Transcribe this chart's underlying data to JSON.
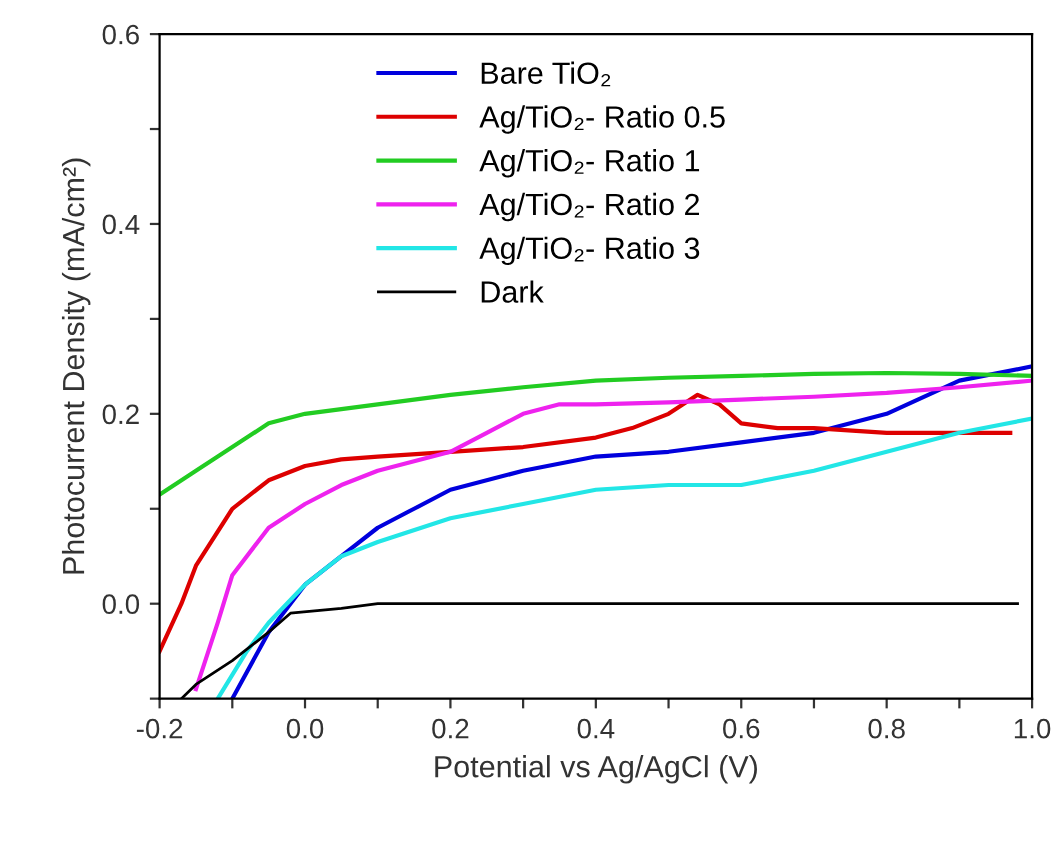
{
  "chart_data": {
    "type": "line",
    "xlabel": "Potential vs Ag/AgCl (V)",
    "ylabel": "Photocurrent Density (mA/cm²)",
    "xlim": [
      -0.2,
      1.0
    ],
    "ylim": [
      -0.1,
      0.6
    ],
    "xticks": [
      {
        "value": -0.2,
        "label": "-0.2"
      },
      {
        "value": -0.1,
        "label": null
      },
      {
        "value": 0.0,
        "label": "0.0"
      },
      {
        "value": 0.1,
        "label": null
      },
      {
        "value": 0.2,
        "label": "0.2"
      },
      {
        "value": 0.3,
        "label": null
      },
      {
        "value": 0.4,
        "label": "0.4"
      },
      {
        "value": 0.5,
        "label": null
      },
      {
        "value": 0.6,
        "label": "0.6"
      },
      {
        "value": 0.7,
        "label": null
      },
      {
        "value": 0.8,
        "label": "0.8"
      },
      {
        "value": 0.9,
        "label": null
      },
      {
        "value": 1.0,
        "label": "1.0"
      }
    ],
    "yticks": [
      {
        "value": -0.1,
        "label": null
      },
      {
        "value": 0.0,
        "label": "0.0"
      },
      {
        "value": 0.1,
        "label": null
      },
      {
        "value": 0.2,
        "label": "0.2"
      },
      {
        "value": 0.3,
        "label": null
      },
      {
        "value": 0.4,
        "label": "0.4"
      },
      {
        "value": 0.5,
        "label": null
      },
      {
        "value": 0.6,
        "label": "0.6"
      }
    ],
    "grid": false,
    "legend": "top",
    "marker": "none",
    "line_style": "solid",
    "series": [
      {
        "name": "Bare TiO₂",
        "color": "#0000dd",
        "x": [
          -0.1,
          -0.05,
          0.0,
          0.05,
          0.1,
          0.15,
          0.2,
          0.3,
          0.4,
          0.5,
          0.6,
          0.7,
          0.8,
          0.9,
          1.0
        ],
        "values": [
          -0.1,
          -0.03,
          0.02,
          0.05,
          0.08,
          0.1,
          0.12,
          0.14,
          0.155,
          0.16,
          0.17,
          0.18,
          0.2,
          0.235,
          0.25
        ]
      },
      {
        "name": "Ag/TiO₂- Ratio 0.5",
        "color": "#dd0000",
        "x": [
          -0.2,
          -0.17,
          -0.15,
          -0.1,
          -0.05,
          0.0,
          0.05,
          0.1,
          0.2,
          0.3,
          0.4,
          0.45,
          0.5,
          0.54,
          0.57,
          0.6,
          0.65,
          0.7,
          0.8,
          0.9,
          0.97
        ],
        "values": [
          -0.05,
          0.0,
          0.04,
          0.1,
          0.13,
          0.145,
          0.152,
          0.155,
          0.16,
          0.165,
          0.175,
          0.185,
          0.2,
          0.22,
          0.21,
          0.19,
          0.185,
          0.185,
          0.18,
          0.18,
          0.18
        ]
      },
      {
        "name": "Ag/TiO₂- Ratio 1",
        "color": "#22cc22",
        "x": [
          -0.2,
          -0.15,
          -0.1,
          -0.05,
          0.0,
          0.1,
          0.2,
          0.3,
          0.4,
          0.5,
          0.6,
          0.7,
          0.8,
          0.9,
          1.0
        ],
        "values": [
          0.115,
          0.14,
          0.165,
          0.19,
          0.2,
          0.21,
          0.22,
          0.228,
          0.235,
          0.238,
          0.24,
          0.242,
          0.243,
          0.242,
          0.24
        ]
      },
      {
        "name": "Ag/TiO₂- Ratio 2",
        "color": "#ee22ee",
        "x": [
          -0.15,
          -0.12,
          -0.1,
          -0.05,
          0.0,
          0.05,
          0.1,
          0.2,
          0.25,
          0.3,
          0.35,
          0.4,
          0.5,
          0.6,
          0.7,
          0.8,
          0.9,
          1.0
        ],
        "values": [
          -0.09,
          -0.02,
          0.03,
          0.08,
          0.105,
          0.125,
          0.14,
          0.16,
          0.18,
          0.2,
          0.21,
          0.21,
          0.212,
          0.215,
          0.218,
          0.222,
          0.228,
          0.235
        ]
      },
      {
        "name": "Ag/TiO₂- Ratio 3",
        "color": "#22e6e6",
        "x": [
          -0.12,
          -0.08,
          -0.05,
          0.0,
          0.05,
          0.1,
          0.2,
          0.3,
          0.4,
          0.5,
          0.6,
          0.7,
          0.8,
          0.9,
          1.0
        ],
        "values": [
          -0.1,
          -0.05,
          -0.02,
          0.02,
          0.05,
          0.065,
          0.09,
          0.105,
          0.12,
          0.125,
          0.125,
          0.14,
          0.16,
          0.18,
          0.195
        ]
      },
      {
        "name": "Dark",
        "color": "#000000",
        "x": [
          -0.17,
          -0.15,
          -0.1,
          -0.05,
          -0.02,
          0.05,
          0.1,
          0.2,
          0.5,
          0.98
        ],
        "values": [
          -0.1,
          -0.085,
          -0.06,
          -0.03,
          -0.01,
          -0.005,
          0.0,
          0.0,
          0.0,
          0.0
        ]
      }
    ]
  }
}
